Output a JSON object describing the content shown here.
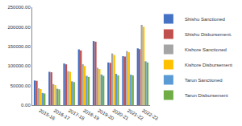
{
  "chart_data": {
    "type": "bar",
    "categories": [
      "2015-16",
      "2016-17",
      "2017-18",
      "2018-19",
      "2019-20",
      "2020-21",
      "2021-22",
      "2022-23"
    ],
    "series": [
      {
        "name": "Shishu Sanctioned",
        "color": "#4472c4",
        "values": [
          62894,
          85100,
          106292,
          142345,
          163559,
          109000,
          125000,
          145000
        ]
      },
      {
        "name": "Shishu Disbursement.",
        "color": "#c0504d",
        "values": [
          62028,
          83892,
          104228,
          139652,
          162012,
          108000,
          124000,
          143000
        ]
      },
      {
        "name": "Kishore Sanctioned",
        "color": "#a5a5a5",
        "values": [
          43052,
          53545,
          86732,
          104387,
          95579,
          132000,
          138000,
          205000
        ]
      },
      {
        "name": "Kishore Disbursement",
        "color": "#ffc000",
        "values": [
          41073,
          51063,
          85100,
          99868,
          92000,
          128000,
          135000,
          200000
        ]
      },
      {
        "name": "Tarun Sanctioned",
        "color": "#5b9bd5",
        "values": [
          31063,
          41883,
          60851,
          74819,
          78373,
          80000,
          78000,
          112000
        ]
      },
      {
        "name": "Tarun Disbursement",
        "color": "#70ad47",
        "values": [
          29806,
          40357,
          58908,
          72016,
          75000,
          76000,
          76000,
          109000
        ]
      }
    ],
    "ylim": [
      0,
      250000
    ],
    "yticks": [
      {
        "value": 0,
        "label": "0.00"
      },
      {
        "value": 50000,
        "label": "50000.00"
      },
      {
        "value": 100000,
        "label": "100000.00"
      },
      {
        "value": 150000,
        "label": "150000.00"
      },
      {
        "value": 200000,
        "label": "200000.00"
      },
      {
        "value": 250000,
        "label": "250000.00"
      }
    ],
    "grid": false,
    "legend": "right"
  }
}
